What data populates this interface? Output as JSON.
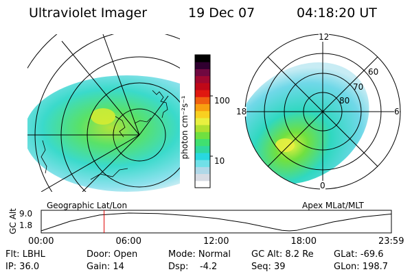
{
  "header": {
    "instrument": "Ultraviolet Imager",
    "date": "19 Dec 07",
    "time": "04:18:20 UT"
  },
  "colorbar": {
    "unit_label": "photon cm⁻²s⁻¹",
    "ticks": [
      "100",
      "10"
    ],
    "colors": [
      "#ffffff",
      "#d8dce4",
      "#b0d8e8",
      "#70e0e8",
      "#28d8e0",
      "#30d8a0",
      "#40e070",
      "#70e040",
      "#b0e030",
      "#e8f040",
      "#f8d020",
      "#f8a010",
      "#f06010",
      "#e01810",
      "#c00818",
      "#a00830",
      "#700840",
      "#300030",
      "#000000"
    ]
  },
  "left_panel": {
    "caption": "Geographic Lat/Lon"
  },
  "right_panel": {
    "caption": "Apex MLat/MLT",
    "mlt_labels": {
      "top": "12",
      "left": "18",
      "right": "6",
      "bottom": "0"
    },
    "mlat_labels": [
      "60",
      "70",
      "80"
    ]
  },
  "chart_data": {
    "type": "line",
    "title": "",
    "ylabel": "GC Alt",
    "yticks": [
      "9.0",
      "1.8"
    ],
    "ylim": [
      1.8,
      9.0
    ],
    "xticks": [
      "00:00",
      "06:00",
      "12:00",
      "18:00",
      "23:59"
    ],
    "xlim_hours": [
      0,
      24
    ],
    "series": [
      {
        "x": [
          0,
          2,
          4,
          6,
          8,
          10,
          12,
          14,
          15,
          16,
          16.5,
          17,
          17.5,
          18,
          19,
          20,
          22,
          24
        ],
        "values": [
          1.8,
          5.7,
          8.2,
          9.0,
          8.8,
          8.0,
          6.8,
          5.0,
          3.8,
          2.6,
          2.0,
          1.8,
          2.0,
          2.7,
          4.0,
          5.4,
          7.4,
          8.6
        ]
      }
    ],
    "marker_hour": 4.31,
    "marker_color": "#e00000"
  },
  "info": {
    "row1": [
      "Flt: LBHL",
      "Door: Open",
      "Mode: Normal",
      "GC Alt: 8.2 Re",
      "GLat: -69.6"
    ],
    "row2": [
      "IP: 36.0",
      "Gain: 14",
      "Dsp:    -4.2",
      "Seq: 39",
      "GLon: 198.7"
    ]
  }
}
